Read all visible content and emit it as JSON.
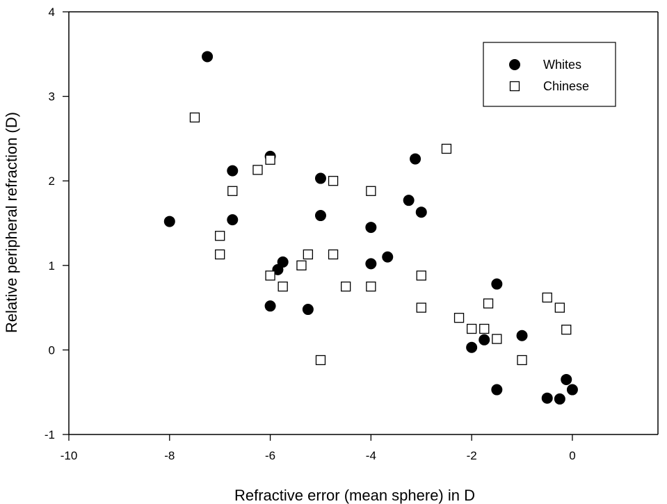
{
  "chart_data": {
    "type": "scatter",
    "xlabel": "Refractive error (mean sphere) in D",
    "ylabel": "Relative peripheral refraction (D)",
    "xlim": [
      -10,
      1.7
    ],
    "ylim": [
      -1,
      4
    ],
    "x_ticks": [
      -10,
      -8,
      -6,
      -4,
      -2,
      0
    ],
    "y_ticks": [
      -1,
      0,
      1,
      2,
      3,
      4
    ],
    "grid": false,
    "legend_position": "top-right",
    "series": [
      {
        "name": "Whites",
        "marker": "filled-circle",
        "color": "#000000",
        "points": [
          [
            -7.25,
            3.47
          ],
          [
            -8.0,
            1.52
          ],
          [
            -6.75,
            2.12
          ],
          [
            -6.75,
            1.54
          ],
          [
            -6.0,
            2.29
          ],
          [
            -6.0,
            0.52
          ],
          [
            -5.85,
            0.95
          ],
          [
            -5.75,
            1.04
          ],
          [
            -5.25,
            0.48
          ],
          [
            -5.0,
            2.03
          ],
          [
            -5.0,
            1.59
          ],
          [
            -4.0,
            1.45
          ],
          [
            -4.0,
            1.02
          ],
          [
            -3.67,
            1.1
          ],
          [
            -3.25,
            1.77
          ],
          [
            -3.12,
            2.26
          ],
          [
            -3.0,
            1.63
          ],
          [
            -2.0,
            0.03
          ],
          [
            -1.75,
            0.12
          ],
          [
            -1.5,
            0.78
          ],
          [
            -1.5,
            -0.47
          ],
          [
            -1.0,
            0.17
          ],
          [
            -0.5,
            -0.57
          ],
          [
            -0.25,
            -0.58
          ],
          [
            -0.12,
            -0.35
          ],
          [
            0.0,
            -0.47
          ]
        ]
      },
      {
        "name": "Chinese",
        "marker": "open-square",
        "color": "#000000",
        "points": [
          [
            -7.5,
            2.75
          ],
          [
            -7.0,
            1.35
          ],
          [
            -7.0,
            1.13
          ],
          [
            -6.75,
            1.88
          ],
          [
            -6.25,
            2.13
          ],
          [
            -6.0,
            2.25
          ],
          [
            -6.0,
            0.88
          ],
          [
            -5.75,
            0.75
          ],
          [
            -5.38,
            1.0
          ],
          [
            -5.25,
            1.13
          ],
          [
            -5.0,
            -0.12
          ],
          [
            -4.75,
            2.0
          ],
          [
            -4.75,
            1.13
          ],
          [
            -4.5,
            0.75
          ],
          [
            -4.0,
            1.88
          ],
          [
            -4.0,
            0.75
          ],
          [
            -3.0,
            0.88
          ],
          [
            -3.0,
            0.5
          ],
          [
            -2.5,
            2.38
          ],
          [
            -2.25,
            0.38
          ],
          [
            -2.0,
            0.25
          ],
          [
            -1.75,
            0.25
          ],
          [
            -1.67,
            0.55
          ],
          [
            -1.5,
            0.13
          ],
          [
            -1.0,
            -0.12
          ],
          [
            -0.5,
            0.62
          ],
          [
            -0.25,
            0.5
          ],
          [
            -0.12,
            0.24
          ]
        ]
      }
    ]
  }
}
